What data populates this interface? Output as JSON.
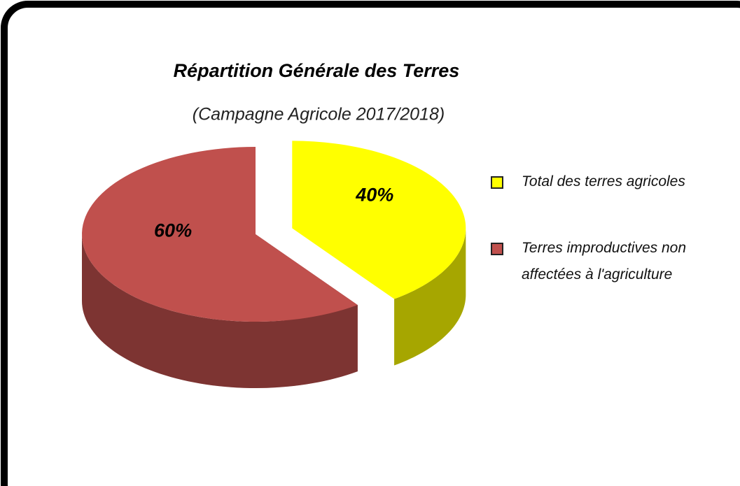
{
  "chart_data": {
    "type": "pie",
    "title": "Répartition Générale des Terres",
    "subtitle": "(Campagne Agricole 2017/2018)",
    "categories": [
      "Total des terres agricoles",
      "Terres improductives non affectées à l'agriculture"
    ],
    "values": [
      40,
      60
    ],
    "value_labels": [
      "40%",
      "60%"
    ],
    "colors": [
      "#ffff00",
      "#c0504d"
    ],
    "legend": "right"
  }
}
